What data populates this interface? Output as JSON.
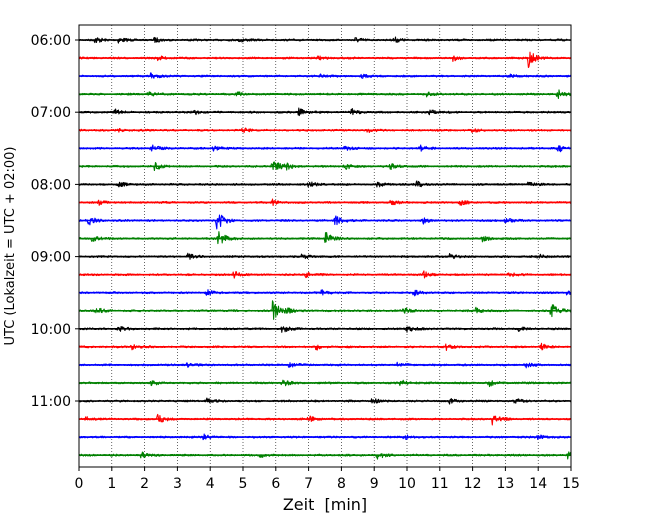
{
  "chart_data": {
    "type": "line",
    "title": "",
    "xlabel": "Zeit  [min]",
    "ylabel": "UTC (Lokalzeit = UTC + 02:00)",
    "xlim": [
      0,
      15
    ],
    "x_ticks": [
      0,
      1,
      2,
      3,
      4,
      5,
      6,
      7,
      8,
      9,
      10,
      11,
      12,
      13,
      14,
      15
    ],
    "y_ticks": [
      "06:00",
      "07:00",
      "08:00",
      "09:00",
      "10:00",
      "11:00"
    ],
    "grid": "vertical dotted",
    "colors": [
      "#000000",
      "#ff0000",
      "#0000ff",
      "#008000"
    ],
    "series": [
      {
        "start": "06:00",
        "color": "#000000",
        "events": [
          [
            0.5,
            0.35
          ],
          [
            1.2,
            0.3
          ],
          [
            2.3,
            0.25
          ],
          [
            4.9,
            0.3
          ],
          [
            8.4,
            0.3
          ],
          [
            9.6,
            0.3
          ]
        ]
      },
      {
        "start": "06:15",
        "color": "#ff0000",
        "events": [
          [
            2.4,
            0.25
          ],
          [
            7.3,
            0.2
          ],
          [
            11.4,
            0.3
          ],
          [
            13.7,
            1.0
          ]
        ]
      },
      {
        "start": "06:30",
        "color": "#0000ff",
        "events": [
          [
            2.2,
            0.45
          ],
          [
            7.3,
            0.25
          ],
          [
            8.6,
            0.2
          ],
          [
            13.1,
            0.3
          ]
        ]
      },
      {
        "start": "06:45",
        "color": "#008000",
        "events": [
          [
            2.1,
            0.3
          ],
          [
            4.8,
            0.3
          ],
          [
            10.6,
            0.25
          ],
          [
            14.6,
            0.5
          ]
        ]
      },
      {
        "start": "07:00",
        "color": "#000000",
        "events": [
          [
            1.1,
            0.3
          ],
          [
            3.5,
            0.25
          ],
          [
            6.7,
            0.45
          ],
          [
            8.3,
            0.35
          ],
          [
            10.7,
            0.3
          ]
        ]
      },
      {
        "start": "07:15",
        "color": "#ff0000",
        "events": [
          [
            1.2,
            0.2
          ],
          [
            5.0,
            0.3
          ],
          [
            8.8,
            0.2
          ],
          [
            12.0,
            0.2
          ]
        ]
      },
      {
        "start": "07:30",
        "color": "#0000ff",
        "events": [
          [
            2.2,
            0.4
          ],
          [
            4.1,
            0.3
          ],
          [
            8.1,
            0.3
          ],
          [
            10.4,
            0.3
          ],
          [
            14.6,
            0.45
          ]
        ]
      },
      {
        "start": "07:45",
        "color": "#008000",
        "events": [
          [
            2.3,
            0.45
          ],
          [
            5.9,
            0.85
          ],
          [
            6.3,
            0.35
          ],
          [
            8.1,
            0.3
          ],
          [
            9.5,
            0.3
          ]
        ]
      },
      {
        "start": "08:00",
        "color": "#000000",
        "events": [
          [
            1.2,
            0.35
          ],
          [
            7.0,
            0.3
          ],
          [
            9.1,
            0.3
          ],
          [
            10.3,
            0.35
          ],
          [
            13.7,
            0.35
          ]
        ]
      },
      {
        "start": "08:15",
        "color": "#ff0000",
        "events": [
          [
            0.6,
            0.25
          ],
          [
            5.9,
            0.3
          ],
          [
            9.5,
            0.3
          ],
          [
            11.6,
            0.3
          ]
        ]
      },
      {
        "start": "08:30",
        "color": "#0000ff",
        "events": [
          [
            0.3,
            0.5
          ],
          [
            4.2,
            1.1
          ],
          [
            7.8,
            0.75
          ],
          [
            10.5,
            0.3
          ],
          [
            13.0,
            0.3
          ]
        ]
      },
      {
        "start": "08:45",
        "color": "#008000",
        "events": [
          [
            0.4,
            0.35
          ],
          [
            4.25,
            0.9
          ],
          [
            7.5,
            0.85
          ],
          [
            12.3,
            0.3
          ]
        ]
      },
      {
        "start": "09:00",
        "color": "#000000",
        "events": [
          [
            3.3,
            0.35
          ],
          [
            6.8,
            0.3
          ],
          [
            11.3,
            0.3
          ],
          [
            14.0,
            0.3
          ]
        ]
      },
      {
        "start": "09:15",
        "color": "#ff0000",
        "events": [
          [
            4.7,
            0.4
          ],
          [
            6.9,
            0.3
          ],
          [
            10.5,
            0.35
          ],
          [
            13.1,
            0.25
          ]
        ]
      },
      {
        "start": "09:30",
        "color": "#0000ff",
        "events": [
          [
            3.9,
            0.3
          ],
          [
            7.4,
            0.3
          ],
          [
            10.2,
            0.3
          ],
          [
            14.9,
            0.55
          ]
        ]
      },
      {
        "start": "09:45",
        "color": "#008000",
        "events": [
          [
            0.5,
            0.45
          ],
          [
            5.9,
            1.15
          ],
          [
            6.3,
            0.4
          ],
          [
            9.9,
            0.35
          ],
          [
            12.1,
            0.3
          ],
          [
            14.4,
            0.95
          ]
        ]
      },
      {
        "start": "10:00",
        "color": "#000000",
        "events": [
          [
            1.2,
            0.3
          ],
          [
            6.2,
            0.45
          ],
          [
            10.0,
            0.35
          ],
          [
            13.4,
            0.3
          ]
        ]
      },
      {
        "start": "10:15",
        "color": "#ff0000",
        "events": [
          [
            1.6,
            0.3
          ],
          [
            7.2,
            0.45
          ],
          [
            11.2,
            0.3
          ],
          [
            14.1,
            0.3
          ]
        ]
      },
      {
        "start": "10:30",
        "color": "#0000ff",
        "events": [
          [
            3.3,
            0.3
          ],
          [
            6.4,
            0.3
          ],
          [
            9.7,
            0.3
          ],
          [
            13.6,
            0.3
          ]
        ]
      },
      {
        "start": "10:45",
        "color": "#008000",
        "events": [
          [
            2.2,
            0.3
          ],
          [
            6.2,
            0.35
          ],
          [
            9.8,
            0.35
          ],
          [
            12.5,
            0.35
          ]
        ]
      },
      {
        "start": "11:00",
        "color": "#000000",
        "events": [
          [
            3.9,
            0.3
          ],
          [
            8.9,
            0.35
          ],
          [
            11.3,
            0.3
          ],
          [
            13.3,
            0.3
          ]
        ]
      },
      {
        "start": "11:15",
        "color": "#ff0000",
        "events": [
          [
            0.2,
            0.3
          ],
          [
            2.4,
            0.55
          ],
          [
            7.0,
            0.3
          ],
          [
            12.6,
            0.6
          ]
        ]
      },
      {
        "start": "11:30",
        "color": "#0000ff",
        "events": [
          [
            3.8,
            0.3
          ],
          [
            9.9,
            0.3
          ],
          [
            14.0,
            0.3
          ]
        ]
      },
      {
        "start": "11:45",
        "color": "#008000",
        "events": [
          [
            1.9,
            0.35
          ],
          [
            5.5,
            0.3
          ],
          [
            9.1,
            0.4
          ],
          [
            14.9,
            0.35
          ]
        ]
      }
    ]
  }
}
